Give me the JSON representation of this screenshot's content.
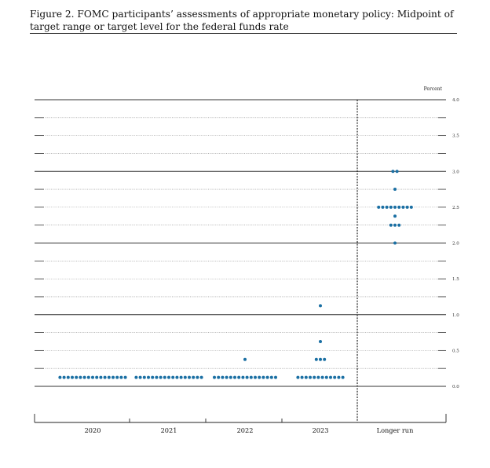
{
  "figure": {
    "title": "Figure 2.  FOMC participants’ assessments of appropriate monetary policy: Midpoint of target range or target level for the federal funds rate"
  },
  "chart_data": {
    "type": "scatter",
    "title": "Figure 2.  FOMC participants’ assessments of appropriate monetary policy: Midpoint of target range or target level for the federal funds rate",
    "ylabel": "Percent",
    "xlabel": "",
    "ylim": [
      0.0,
      4.0
    ],
    "yticks": [
      0.0,
      0.5,
      1.0,
      1.5,
      2.0,
      2.5,
      3.0,
      3.5,
      4.0
    ],
    "ytick_labels": [
      "0.0",
      "0.5",
      "1.0",
      "1.5",
      "2.0",
      "2.5",
      "3.0",
      "3.5",
      "4.0"
    ],
    "ygrid_step": 0.25,
    "grid": true,
    "dot_color": "#1a6fa3",
    "categories": [
      "2020",
      "2021",
      "2022",
      "2023",
      "Longer run"
    ],
    "dots": [
      {
        "category": "2020",
        "points": [
          {
            "y": 0.125,
            "count": 17
          }
        ]
      },
      {
        "category": "2021",
        "points": [
          {
            "y": 0.125,
            "count": 17
          }
        ]
      },
      {
        "category": "2022",
        "points": [
          {
            "y": 0.125,
            "count": 16
          },
          {
            "y": 0.375,
            "count": 1
          }
        ]
      },
      {
        "category": "2023",
        "points": [
          {
            "y": 0.125,
            "count": 12
          },
          {
            "y": 0.375,
            "count": 3
          },
          {
            "y": 0.625,
            "count": 1
          },
          {
            "y": 1.125,
            "count": 1
          }
        ]
      },
      {
        "category": "Longer run",
        "points": [
          {
            "y": 2.0,
            "count": 1
          },
          {
            "y": 2.25,
            "count": 3
          },
          {
            "y": 2.375,
            "count": 1
          },
          {
            "y": 2.5,
            "count": 9
          },
          {
            "y": 2.75,
            "count": 1
          },
          {
            "y": 3.0,
            "count": 2
          }
        ]
      }
    ]
  }
}
